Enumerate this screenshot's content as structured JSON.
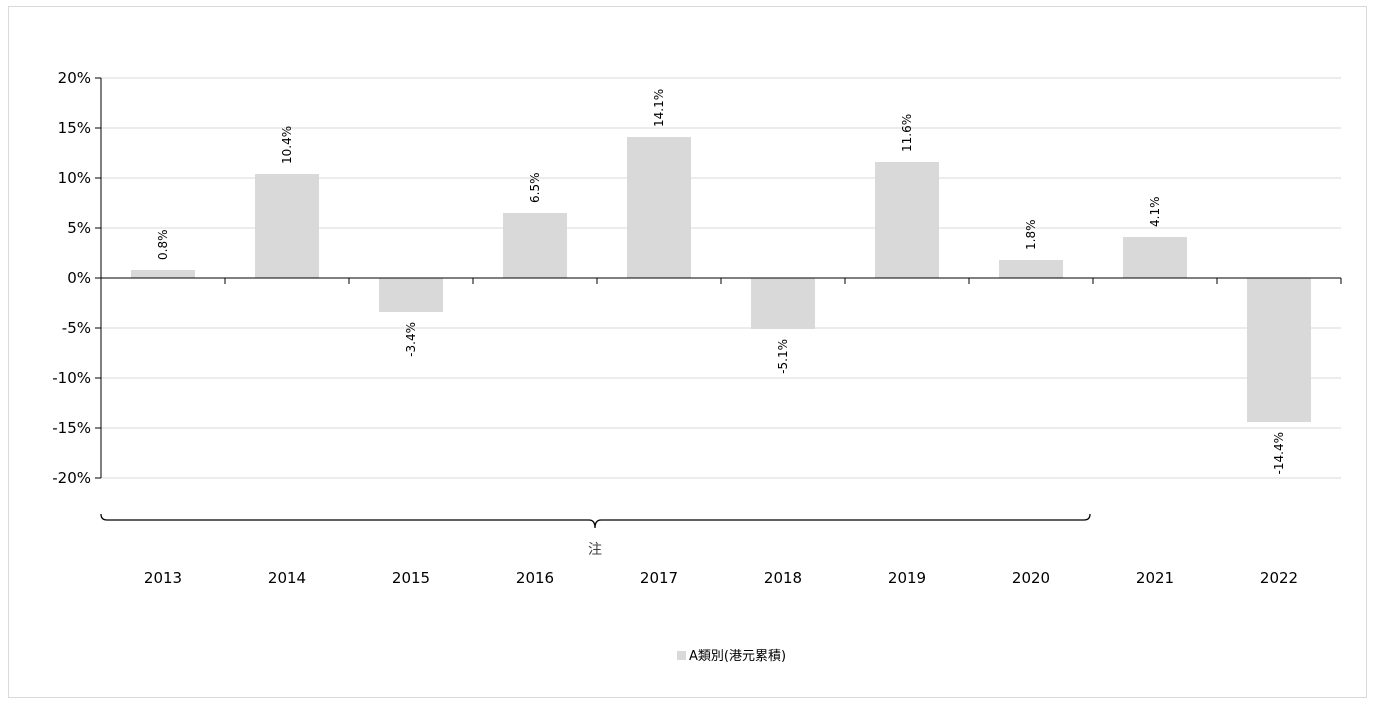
{
  "chart_data": {
    "type": "bar",
    "categories": [
      "2013",
      "2014",
      "2015",
      "2016",
      "2017",
      "2018",
      "2019",
      "2020",
      "2021",
      "2022"
    ],
    "series": [
      {
        "name": "A類別(港元累積)",
        "values": [
          0.8,
          10.4,
          -3.4,
          6.5,
          14.1,
          -5.1,
          11.6,
          1.8,
          4.1,
          -14.4
        ],
        "labels": [
          "0.8%",
          "10.4%",
          "-3.4%",
          "6.5%",
          "14.1%",
          "-5.1%",
          "11.6%",
          "1.8%",
          "4.1%",
          "-14.4%"
        ],
        "color": "#d9d9d9"
      }
    ],
    "ylim": [
      -20,
      20
    ],
    "yticks": [
      20,
      15,
      10,
      5,
      0,
      -5,
      -10,
      -15,
      -20
    ],
    "ytick_labels": [
      "20%",
      "15%",
      "10%",
      "5%",
      "0%",
      "-5%",
      "-10%",
      "-15%",
      "-20%"
    ],
    "grid": true,
    "legend": "bottom",
    "bracket_annotation": {
      "text": "注",
      "from_category": "2013",
      "to_category": "2020"
    }
  },
  "colors": {
    "bar": "#d9d9d9",
    "grid": "#d9d9d9",
    "axis": "#000000"
  }
}
